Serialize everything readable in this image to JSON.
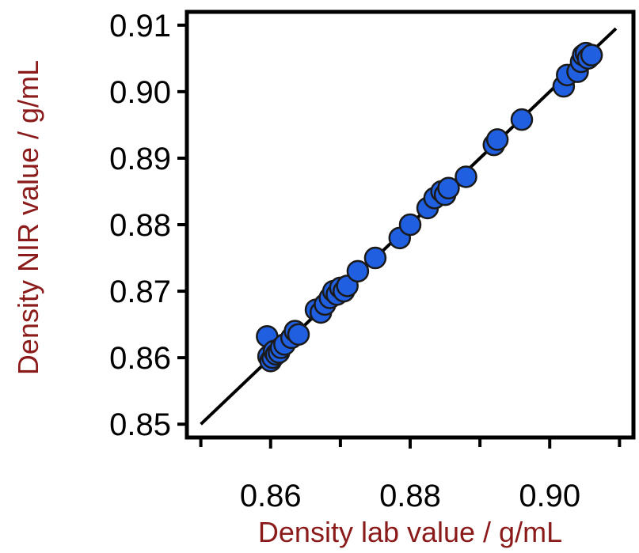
{
  "chart_data": {
    "type": "scatter",
    "title": "",
    "xlabel": "Density lab value / g/mL",
    "ylabel": "Density NIR value / g/mL",
    "xlim": [
      0.848,
      0.912
    ],
    "ylim": [
      0.848,
      0.912
    ],
    "x_ticks": [
      0.86,
      0.88,
      0.9
    ],
    "x_tick_labels": [
      "0.86",
      "0.88",
      "0.90"
    ],
    "x_minor_ticks": [
      0.85,
      0.87,
      0.89,
      0.91
    ],
    "y_ticks": [
      0.85,
      0.86,
      0.87,
      0.88,
      0.89,
      0.9,
      0.91
    ],
    "y_tick_labels": [
      "0.85",
      "0.86",
      "0.87",
      "0.88",
      "0.89",
      "0.90",
      "0.91"
    ],
    "grid": false,
    "legend": "none",
    "colors": {
      "marker": "#1f5fe0",
      "marker_edge": "#1a1a1a",
      "line": "#000000",
      "axis_title": "#8b1a1a"
    },
    "fit_line": {
      "x": [
        0.85,
        0.9095
      ],
      "y": [
        0.85,
        0.9095
      ]
    },
    "points": [
      {
        "x": 0.8595,
        "y": 0.8632
      },
      {
        "x": 0.8597,
        "y": 0.8602
      },
      {
        "x": 0.86,
        "y": 0.8595
      },
      {
        "x": 0.8603,
        "y": 0.86
      },
      {
        "x": 0.8605,
        "y": 0.861
      },
      {
        "x": 0.8608,
        "y": 0.8605
      },
      {
        "x": 0.8612,
        "y": 0.8608
      },
      {
        "x": 0.8615,
        "y": 0.8615
      },
      {
        "x": 0.862,
        "y": 0.862
      },
      {
        "x": 0.863,
        "y": 0.863
      },
      {
        "x": 0.8635,
        "y": 0.864
      },
      {
        "x": 0.864,
        "y": 0.8635
      },
      {
        "x": 0.8665,
        "y": 0.8672
      },
      {
        "x": 0.8672,
        "y": 0.8668
      },
      {
        "x": 0.8678,
        "y": 0.868
      },
      {
        "x": 0.8685,
        "y": 0.869
      },
      {
        "x": 0.869,
        "y": 0.87
      },
      {
        "x": 0.8695,
        "y": 0.8695
      },
      {
        "x": 0.87,
        "y": 0.8705
      },
      {
        "x": 0.8705,
        "y": 0.87
      },
      {
        "x": 0.871,
        "y": 0.8708
      },
      {
        "x": 0.8725,
        "y": 0.873
      },
      {
        "x": 0.875,
        "y": 0.875
      },
      {
        "x": 0.8785,
        "y": 0.878
      },
      {
        "x": 0.88,
        "y": 0.88
      },
      {
        "x": 0.8825,
        "y": 0.8825
      },
      {
        "x": 0.8835,
        "y": 0.884
      },
      {
        "x": 0.8845,
        "y": 0.885
      },
      {
        "x": 0.885,
        "y": 0.8845
      },
      {
        "x": 0.8855,
        "y": 0.8855
      },
      {
        "x": 0.888,
        "y": 0.8872
      },
      {
        "x": 0.892,
        "y": 0.892
      },
      {
        "x": 0.8925,
        "y": 0.8928
      },
      {
        "x": 0.896,
        "y": 0.8958
      },
      {
        "x": 0.902,
        "y": 0.9008
      },
      {
        "x": 0.9025,
        "y": 0.9025
      },
      {
        "x": 0.904,
        "y": 0.903
      },
      {
        "x": 0.9045,
        "y": 0.9045
      },
      {
        "x": 0.9048,
        "y": 0.9055
      },
      {
        "x": 0.9052,
        "y": 0.9058
      },
      {
        "x": 0.9055,
        "y": 0.905
      },
      {
        "x": 0.906,
        "y": 0.9055
      }
    ]
  }
}
